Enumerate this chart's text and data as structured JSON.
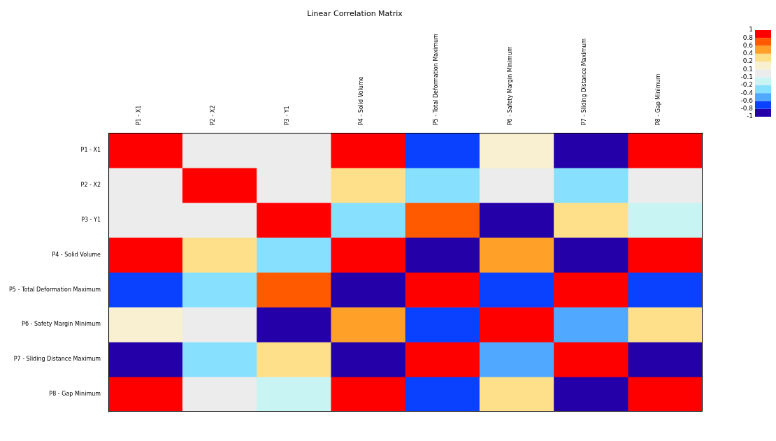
{
  "chart_data": {
    "type": "heatmap",
    "title": "Linear Correlation Matrix",
    "categories": [
      "P1 - X1",
      "P2 - X2",
      "P3 - Y1",
      "P4 - Solid Volume",
      "P5 - Total Deformation Maximum",
      "P6 - Safety Margin Minimum",
      "P7 - Sliding Distance Maximum",
      "P8 - Gap Minimum"
    ],
    "y_categories": [
      "P1 - X1",
      "P2 - X2",
      "P3 - Y1",
      "P4 - Solid Volume",
      "P5 - Total Deformation Maximum",
      "P6 - Safety Margin Minimum",
      "P7 - Sliding Distance Maximum",
      "P8 - Gap Minimum"
    ],
    "cells": [
      [
        1,
        0,
        0,
        0.9,
        -0.7,
        0.15,
        -0.9,
        0.9
      ],
      [
        0,
        1,
        0,
        0.3,
        -0.3,
        0,
        -0.3,
        0
      ],
      [
        0,
        0,
        1,
        -0.3,
        0.7,
        -0.9,
        0.3,
        -0.15
      ],
      [
        0.9,
        0.3,
        -0.3,
        1,
        -0.9,
        0.5,
        -0.9,
        0.9
      ],
      [
        -0.7,
        -0.3,
        0.7,
        -0.9,
        1,
        -0.7,
        0.9,
        -0.7
      ],
      [
        0.15,
        0,
        -0.9,
        0.5,
        -0.7,
        1,
        -0.5,
        0.3
      ],
      [
        -0.9,
        -0.3,
        0.3,
        -0.9,
        0.9,
        -0.5,
        1,
        -0.9
      ],
      [
        0.9,
        0,
        -0.15,
        0.9,
        -0.7,
        0.3,
        -0.9,
        1
      ]
    ],
    "clim": [
      -1,
      1
    ],
    "cticks": [
      -1,
      -0.8,
      -0.6,
      -0.4,
      -0.2,
      -0.1,
      0.1,
      0.2,
      0.4,
      0.6,
      0.8,
      1
    ],
    "colors": [
      "#2400a8",
      "#0a40ff",
      "#50a8ff",
      "#88e0ff",
      "#c8f4f4",
      "#ececec",
      "#f8f0d0",
      "#ffe08a",
      "#ffa028",
      "#ff5a00",
      "#ff0000"
    ]
  }
}
